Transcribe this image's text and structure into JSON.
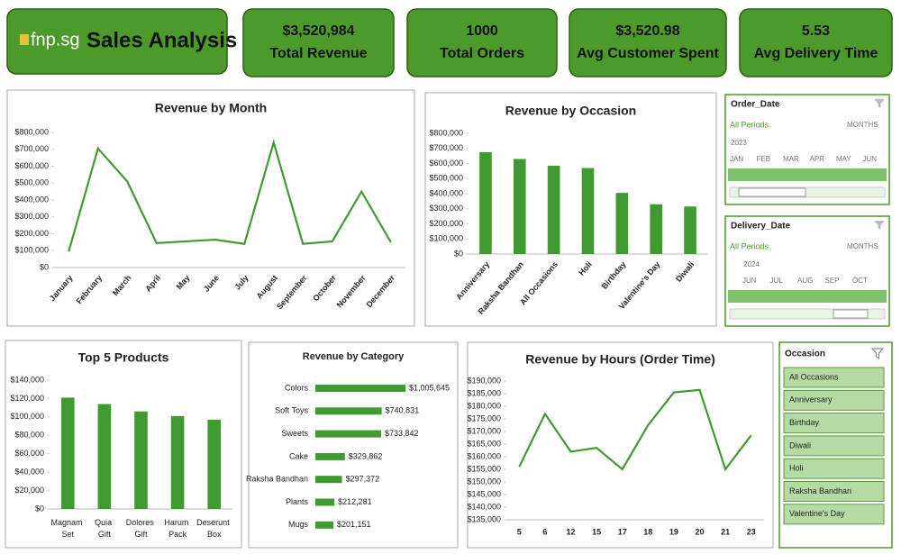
{
  "header": {
    "logo": "fnp.sg",
    "title": "Sales Analysis"
  },
  "kpis": [
    {
      "value": "$3,520,984",
      "label": "Total Revenue"
    },
    {
      "value": "1000",
      "label": "Total Orders"
    },
    {
      "value": "$3,520.98",
      "label": "Avg Customer Spent"
    },
    {
      "value": "5.53",
      "label": "Avg Delivery Time"
    }
  ],
  "chart_data": [
    {
      "type": "line",
      "title": "Revenue by Month",
      "color": "#3f9a2f",
      "grid": false,
      "categories": [
        "January",
        "February",
        "March",
        "April",
        "May",
        "June",
        "July",
        "August",
        "September",
        "October",
        "November",
        "December"
      ],
      "values": [
        95000,
        705000,
        510000,
        145000,
        155000,
        165000,
        140000,
        740000,
        140000,
        155000,
        450000,
        150000
      ],
      "ylim": [
        0,
        800000
      ],
      "yticks": [
        {
          "value": 0,
          "label": "$0"
        },
        {
          "value": 100000,
          "label": "$100,000"
        },
        {
          "value": 200000,
          "label": "$200,000"
        },
        {
          "value": 300000,
          "label": "$300,000"
        },
        {
          "value": 400000,
          "label": "$400,000"
        },
        {
          "value": 500000,
          "label": "$500,000"
        },
        {
          "value": 600000,
          "label": "$600,000"
        },
        {
          "value": 700000,
          "label": "$700,000"
        },
        {
          "value": 800000,
          "label": "$800,000"
        }
      ]
    },
    {
      "type": "bar",
      "title": "Revenue by Occasion",
      "color": "#3f9a2f",
      "grid": false,
      "categories": [
        "Anniversary",
        "Raksha Bandhan",
        "All Occasions",
        "Holi",
        "Birthday",
        "Valentine's Day",
        "Diwali"
      ],
      "values": [
        675000,
        630000,
        585000,
        570000,
        405000,
        330000,
        315000
      ],
      "ylim": [
        0,
        800000
      ],
      "yticks": [
        {
          "value": 0,
          "label": "$0"
        },
        {
          "value": 100000,
          "label": "$100,000"
        },
        {
          "value": 200000,
          "label": "$200,000"
        },
        {
          "value": 300000,
          "label": "$300,000"
        },
        {
          "value": 400000,
          "label": "$400,000"
        },
        {
          "value": 500000,
          "label": "$500,000"
        },
        {
          "value": 600000,
          "label": "$600,000"
        },
        {
          "value": 700000,
          "label": "$700,000"
        },
        {
          "value": 800000,
          "label": "$800,000"
        }
      ]
    },
    {
      "type": "bar",
      "title": "Top 5 Products",
      "color": "#3f9a2f",
      "grid": false,
      "categories": [
        "Magnam Set",
        "Quia Gift",
        "Dolores Gift",
        "Harum Pack",
        "Deserunt Box"
      ],
      "values": [
        121000,
        114000,
        106000,
        101000,
        97000
      ],
      "ylim": [
        0,
        140000
      ],
      "yticks": [
        {
          "value": 0,
          "label": "$0"
        },
        {
          "value": 20000,
          "label": "$20,000"
        },
        {
          "value": 40000,
          "label": "$40,000"
        },
        {
          "value": 60000,
          "label": "$60,000"
        },
        {
          "value": 80000,
          "label": "$80,000"
        },
        {
          "value": 100000,
          "label": "$100,000"
        },
        {
          "value": 120000,
          "label": "$120,000"
        },
        {
          "value": 140000,
          "label": "$140,000"
        }
      ]
    },
    {
      "type": "hbar",
      "title": "Revenue by Category",
      "color": "#3f9a2f",
      "categories": [
        "Colors",
        "Soft Toys",
        "Sweets",
        "Cake",
        "Raksha Bandhan",
        "Plants",
        "Mugs"
      ],
      "values": [
        1005645,
        740831,
        733842,
        329862,
        297372,
        212281,
        201151
      ],
      "value_labels": [
        "$1,005,645",
        "$740,831",
        "$733,842",
        "$329,862",
        "$297,372",
        "$212,281",
        "$201,151"
      ]
    },
    {
      "type": "line",
      "title": "Revenue by Hours (Order Time)",
      "color": "#3f9a2f",
      "grid": false,
      "categories": [
        "5",
        "6",
        "12",
        "15",
        "17",
        "18",
        "19",
        "20",
        "21",
        "23"
      ],
      "values": [
        156000,
        177000,
        162000,
        163500,
        155000,
        172500,
        185500,
        186500,
        155000,
        168500
      ],
      "ylim": [
        135000,
        190000
      ],
      "yticks": [
        {
          "value": 135000,
          "label": "$135,000"
        },
        {
          "value": 140000,
          "label": "$140,000"
        },
        {
          "value": 145000,
          "label": "$145,000"
        },
        {
          "value": 150000,
          "label": "$150,000"
        },
        {
          "value": 155000,
          "label": "$155,000"
        },
        {
          "value": 160000,
          "label": "$160,000"
        },
        {
          "value": 165000,
          "label": "$165,000"
        },
        {
          "value": 170000,
          "label": "$170,000"
        },
        {
          "value": 175000,
          "label": "$175,000"
        },
        {
          "value": 180000,
          "label": "$180,000"
        },
        {
          "value": 185000,
          "label": "$185,000"
        },
        {
          "value": 190000,
          "label": "$190,000"
        }
      ]
    }
  ],
  "slicers": {
    "order_date": {
      "title": "Order_Date",
      "selection": "All Periods",
      "level": "MONTHS",
      "year": "2023",
      "months": [
        "JAN",
        "FEB",
        "MAR",
        "APR",
        "MAY",
        "JUN"
      ]
    },
    "delivery_date": {
      "title": "Delivery_Date",
      "selection": "All Periods",
      "level": "MONTHS",
      "year": "2024",
      "months": [
        "JUN",
        "JUL",
        "AUG",
        "SEP",
        "OCT"
      ]
    },
    "occasion": {
      "title": "Occasion",
      "items": [
        "All Occasions",
        "Anniversary",
        "Birthday",
        "Diwali",
        "Holi",
        "Raksha Bandhan",
        "Valentine's Day"
      ]
    }
  }
}
